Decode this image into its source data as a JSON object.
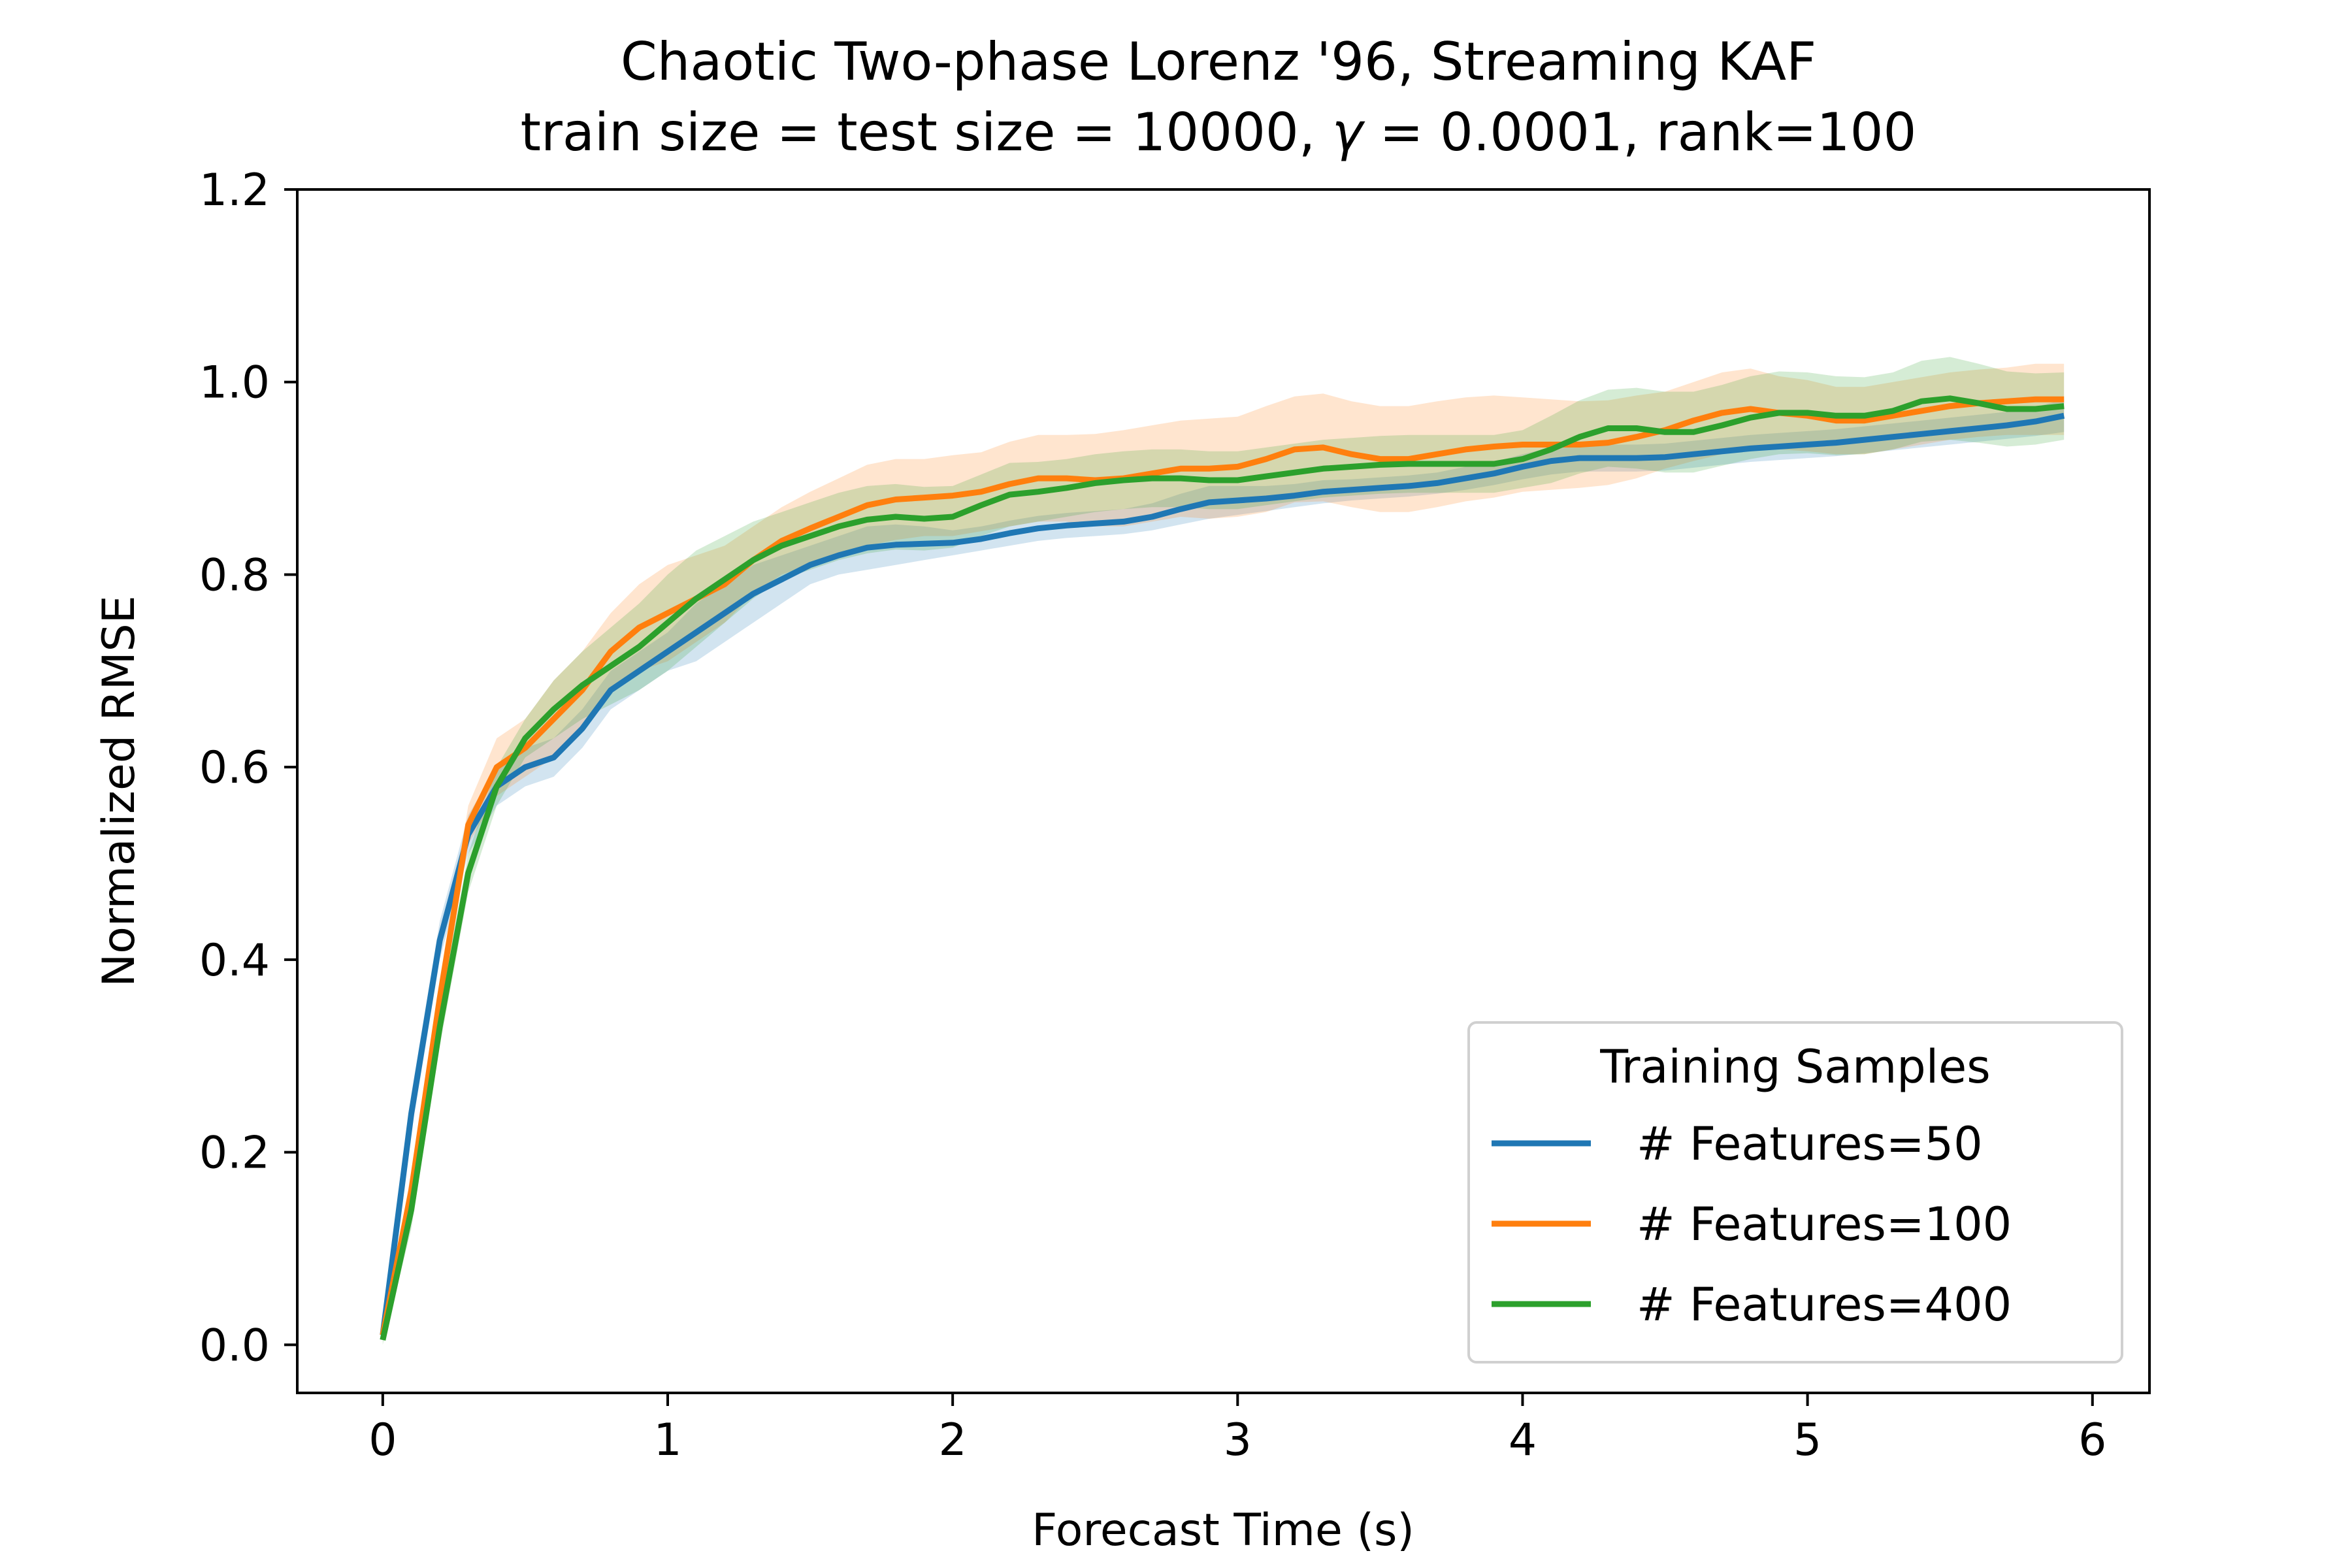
{
  "chart_data": {
    "type": "line",
    "title": "Chaotic Two-phase Lorenz '96, Streaming KAF",
    "subtitle": "train size = test size = 10000, γ = 0.0001, rank=100",
    "subtitle_parts": {
      "prefix": "train size = test size = 10000, ",
      "gamma_symbol": "γ",
      "suffix": " = 0.0001, rank=100"
    },
    "xlabel": "Forecast Time (s)",
    "ylabel": "Normalized RMSE",
    "xlim": [
      -0.3,
      6.2
    ],
    "ylim": [
      -0.05,
      1.2
    ],
    "xticks": [
      0,
      1,
      2,
      3,
      4,
      5,
      6
    ],
    "xtick_labels": [
      "0",
      "1",
      "2",
      "3",
      "4",
      "5",
      "6"
    ],
    "yticks": [
      0.0,
      0.2,
      0.4,
      0.6,
      0.8,
      1.0,
      1.2
    ],
    "ytick_labels": [
      "0.0",
      "0.2",
      "0.4",
      "0.6",
      "0.8",
      "1.0",
      "1.2"
    ],
    "grid": false,
    "legend": {
      "title": "Training Samples",
      "position": "lower-right"
    },
    "x": [
      0.0,
      0.1,
      0.2,
      0.3,
      0.4,
      0.5,
      0.6,
      0.7,
      0.8,
      0.9,
      1.0,
      1.1,
      1.2,
      1.3,
      1.4,
      1.5,
      1.6,
      1.7,
      1.8,
      1.9,
      2.0,
      2.1,
      2.2,
      2.3,
      2.4,
      2.5,
      2.6,
      2.7,
      2.8,
      2.9,
      3.0,
      3.1,
      3.2,
      3.3,
      3.4,
      3.5,
      3.6,
      3.7,
      3.8,
      3.9,
      4.0,
      4.1,
      4.2,
      4.3,
      4.4,
      4.5,
      4.6,
      4.7,
      4.8,
      4.9,
      5.0,
      5.1,
      5.2,
      5.3,
      5.4,
      5.5,
      5.6,
      5.7,
      5.8,
      5.9
    ],
    "series": [
      {
        "name": "# Features=50",
        "color": "#1f77b4",
        "values": [
          0.01,
          0.24,
          0.42,
          0.53,
          0.58,
          0.6,
          0.61,
          0.64,
          0.68,
          0.7,
          0.72,
          0.74,
          0.76,
          0.78,
          0.795,
          0.81,
          0.82,
          0.828,
          0.831,
          0.832,
          0.833,
          0.837,
          0.843,
          0.848,
          0.851,
          0.853,
          0.855,
          0.86,
          0.868,
          0.875,
          0.877,
          0.879,
          0.882,
          0.886,
          0.888,
          0.89,
          0.892,
          0.895,
          0.9,
          0.905,
          0.912,
          0.918,
          0.921,
          0.921,
          0.921,
          0.922,
          0.925,
          0.928,
          0.931,
          0.933,
          0.935,
          0.937,
          0.94,
          0.943,
          0.946,
          0.949,
          0.952,
          0.955,
          0.959,
          0.965
        ],
        "lower": [
          0.005,
          0.22,
          0.4,
          0.51,
          0.56,
          0.58,
          0.59,
          0.62,
          0.66,
          0.68,
          0.7,
          0.71,
          0.73,
          0.75,
          0.77,
          0.79,
          0.8,
          0.805,
          0.81,
          0.815,
          0.82,
          0.825,
          0.83,
          0.835,
          0.838,
          0.84,
          0.842,
          0.846,
          0.852,
          0.858,
          0.862,
          0.866,
          0.87,
          0.874,
          0.877,
          0.879,
          0.881,
          0.884,
          0.888,
          0.893,
          0.899,
          0.904,
          0.907,
          0.907,
          0.907,
          0.908,
          0.911,
          0.914,
          0.917,
          0.919,
          0.921,
          0.923,
          0.926,
          0.929,
          0.932,
          0.935,
          0.938,
          0.941,
          0.944,
          0.948
        ],
        "upper": [
          0.015,
          0.26,
          0.44,
          0.55,
          0.6,
          0.62,
          0.63,
          0.66,
          0.7,
          0.72,
          0.74,
          0.77,
          0.79,
          0.81,
          0.82,
          0.83,
          0.84,
          0.85,
          0.852,
          0.85,
          0.846,
          0.85,
          0.856,
          0.861,
          0.864,
          0.866,
          0.868,
          0.874,
          0.884,
          0.892,
          0.892,
          0.892,
          0.894,
          0.898,
          0.899,
          0.901,
          0.903,
          0.906,
          0.912,
          0.917,
          0.925,
          0.932,
          0.935,
          0.935,
          0.935,
          0.936,
          0.939,
          0.942,
          0.945,
          0.947,
          0.949,
          0.951,
          0.954,
          0.957,
          0.96,
          0.963,
          0.966,
          0.969,
          0.974,
          0.982
        ]
      },
      {
        "name": "# Features=100",
        "color": "#ff7f0e",
        "values": [
          0.01,
          0.16,
          0.36,
          0.54,
          0.6,
          0.62,
          0.65,
          0.68,
          0.72,
          0.745,
          0.76,
          0.775,
          0.79,
          0.815,
          0.835,
          0.848,
          0.86,
          0.872,
          0.878,
          0.88,
          0.882,
          0.886,
          0.894,
          0.9,
          0.9,
          0.898,
          0.9,
          0.905,
          0.91,
          0.91,
          0.912,
          0.92,
          0.93,
          0.932,
          0.925,
          0.92,
          0.92,
          0.925,
          0.93,
          0.933,
          0.935,
          0.935,
          0.935,
          0.937,
          0.943,
          0.95,
          0.96,
          0.968,
          0.972,
          0.968,
          0.965,
          0.96,
          0.96,
          0.965,
          0.97,
          0.975,
          0.978,
          0.98,
          0.982,
          0.982
        ],
        "lower": [
          0.005,
          0.14,
          0.34,
          0.52,
          0.57,
          0.59,
          0.61,
          0.64,
          0.68,
          0.7,
          0.71,
          0.73,
          0.75,
          0.78,
          0.8,
          0.81,
          0.82,
          0.83,
          0.836,
          0.84,
          0.84,
          0.845,
          0.85,
          0.855,
          0.855,
          0.85,
          0.85,
          0.855,
          0.86,
          0.858,
          0.86,
          0.865,
          0.875,
          0.876,
          0.87,
          0.865,
          0.865,
          0.87,
          0.876,
          0.88,
          0.886,
          0.888,
          0.89,
          0.893,
          0.9,
          0.91,
          0.918,
          0.925,
          0.93,
          0.93,
          0.928,
          0.925,
          0.925,
          0.93,
          0.935,
          0.94,
          0.943,
          0.945,
          0.945,
          0.945
        ],
        "upper": [
          0.015,
          0.18,
          0.38,
          0.56,
          0.63,
          0.65,
          0.69,
          0.72,
          0.76,
          0.79,
          0.81,
          0.82,
          0.83,
          0.85,
          0.87,
          0.886,
          0.9,
          0.914,
          0.92,
          0.92,
          0.924,
          0.927,
          0.938,
          0.945,
          0.945,
          0.946,
          0.95,
          0.955,
          0.96,
          0.962,
          0.964,
          0.975,
          0.985,
          0.988,
          0.98,
          0.975,
          0.975,
          0.98,
          0.984,
          0.986,
          0.984,
          0.982,
          0.98,
          0.981,
          0.986,
          0.99,
          1.0,
          1.01,
          1.014,
          1.006,
          1.002,
          0.995,
          0.995,
          1.0,
          1.005,
          1.01,
          1.013,
          1.015,
          1.019,
          1.019
        ]
      },
      {
        "name": "# Features=400",
        "color": "#2ca02c",
        "values": [
          0.005,
          0.14,
          0.33,
          0.49,
          0.58,
          0.63,
          0.66,
          0.685,
          0.705,
          0.725,
          0.75,
          0.775,
          0.795,
          0.815,
          0.83,
          0.84,
          0.85,
          0.857,
          0.86,
          0.858,
          0.86,
          0.872,
          0.883,
          0.886,
          0.89,
          0.895,
          0.898,
          0.9,
          0.9,
          0.898,
          0.898,
          0.902,
          0.906,
          0.91,
          0.912,
          0.914,
          0.915,
          0.915,
          0.915,
          0.915,
          0.92,
          0.93,
          0.943,
          0.952,
          0.952,
          0.948,
          0.948,
          0.955,
          0.963,
          0.968,
          0.968,
          0.965,
          0.965,
          0.97,
          0.98,
          0.983,
          0.978,
          0.972,
          0.972,
          0.975
        ],
        "lower": [
          0.0,
          0.12,
          0.31,
          0.47,
          0.56,
          0.61,
          0.63,
          0.65,
          0.665,
          0.68,
          0.7,
          0.725,
          0.75,
          0.775,
          0.795,
          0.805,
          0.815,
          0.822,
          0.826,
          0.825,
          0.828,
          0.84,
          0.85,
          0.855,
          0.86,
          0.865,
          0.868,
          0.87,
          0.87,
          0.868,
          0.868,
          0.872,
          0.876,
          0.88,
          0.882,
          0.884,
          0.885,
          0.885,
          0.885,
          0.885,
          0.89,
          0.895,
          0.905,
          0.912,
          0.91,
          0.906,
          0.906,
          0.913,
          0.92,
          0.925,
          0.926,
          0.924,
          0.925,
          0.93,
          0.938,
          0.94,
          0.937,
          0.933,
          0.935,
          0.94
        ],
        "upper": [
          0.01,
          0.16,
          0.35,
          0.51,
          0.6,
          0.65,
          0.69,
          0.72,
          0.745,
          0.77,
          0.8,
          0.825,
          0.84,
          0.855,
          0.865,
          0.875,
          0.885,
          0.892,
          0.894,
          0.891,
          0.892,
          0.904,
          0.916,
          0.917,
          0.92,
          0.925,
          0.928,
          0.93,
          0.93,
          0.928,
          0.928,
          0.932,
          0.936,
          0.94,
          0.942,
          0.944,
          0.945,
          0.945,
          0.945,
          0.945,
          0.95,
          0.965,
          0.981,
          0.992,
          0.994,
          0.99,
          0.99,
          0.997,
          1.006,
          1.011,
          1.01,
          1.006,
          1.005,
          1.01,
          1.022,
          1.026,
          1.019,
          1.011,
          1.009,
          1.01
        ]
      }
    ]
  }
}
